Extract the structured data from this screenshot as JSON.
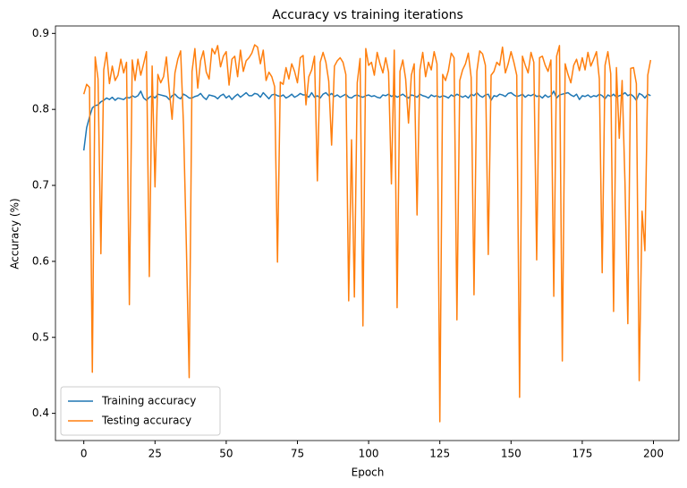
{
  "chart_data": {
    "type": "line",
    "title": "Accuracy vs training iterations",
    "x_label": "Epoch",
    "y_label": "Accuracy (%)",
    "x": [
      0,
      1,
      2,
      3,
      4,
      5,
      6,
      7,
      8,
      9,
      10,
      11,
      12,
      13,
      14,
      15,
      16,
      17,
      18,
      19,
      20,
      21,
      22,
      23,
      24,
      25,
      26,
      27,
      28,
      29,
      30,
      31,
      32,
      33,
      34,
      35,
      36,
      37,
      38,
      39,
      40,
      41,
      42,
      43,
      44,
      45,
      46,
      47,
      48,
      49,
      50,
      51,
      52,
      53,
      54,
      55,
      56,
      57,
      58,
      59,
      60,
      61,
      62,
      63,
      64,
      65,
      66,
      67,
      68,
      69,
      70,
      71,
      72,
      73,
      74,
      75,
      76,
      77,
      78,
      79,
      80,
      81,
      82,
      83,
      84,
      85,
      86,
      87,
      88,
      89,
      90,
      91,
      92,
      93,
      94,
      95,
      96,
      97,
      98,
      99,
      100,
      101,
      102,
      103,
      104,
      105,
      106,
      107,
      108,
      109,
      110,
      111,
      112,
      113,
      114,
      115,
      116,
      117,
      118,
      119,
      120,
      121,
      122,
      123,
      124,
      125,
      126,
      127,
      128,
      129,
      130,
      131,
      132,
      133,
      134,
      135,
      136,
      137,
      138,
      139,
      140,
      141,
      142,
      143,
      144,
      145,
      146,
      147,
      148,
      149,
      150,
      151,
      152,
      153,
      154,
      155,
      156,
      157,
      158,
      159,
      160,
      161,
      162,
      163,
      164,
      165,
      166,
      167,
      168,
      169,
      170,
      171,
      172,
      173,
      174,
      175,
      176,
      177,
      178,
      179,
      180,
      181,
      182,
      183,
      184,
      185,
      186,
      187,
      188,
      189,
      190,
      191,
      192,
      193,
      194,
      195,
      196,
      197,
      198,
      199
    ],
    "series": [
      {
        "name": "Training accuracy",
        "color": "#1f77b4",
        "values": [
          0.746,
          0.776,
          0.79,
          0.802,
          0.805,
          0.806,
          0.81,
          0.812,
          0.815,
          0.813,
          0.816,
          0.812,
          0.815,
          0.814,
          0.813,
          0.816,
          0.815,
          0.818,
          0.816,
          0.818,
          0.824,
          0.815,
          0.812,
          0.816,
          0.818,
          0.815,
          0.82,
          0.819,
          0.818,
          0.817,
          0.813,
          0.818,
          0.82,
          0.816,
          0.814,
          0.82,
          0.818,
          0.815,
          0.815,
          0.817,
          0.818,
          0.821,
          0.816,
          0.813,
          0.819,
          0.818,
          0.817,
          0.814,
          0.818,
          0.82,
          0.815,
          0.818,
          0.813,
          0.817,
          0.82,
          0.816,
          0.819,
          0.822,
          0.818,
          0.818,
          0.821,
          0.82,
          0.816,
          0.822,
          0.818,
          0.814,
          0.819,
          0.82,
          0.818,
          0.817,
          0.819,
          0.815,
          0.817,
          0.82,
          0.816,
          0.818,
          0.821,
          0.819,
          0.819,
          0.816,
          0.822,
          0.816,
          0.818,
          0.815,
          0.82,
          0.822,
          0.818,
          0.821,
          0.817,
          0.819,
          0.816,
          0.818,
          0.82,
          0.816,
          0.815,
          0.818,
          0.819,
          0.817,
          0.816,
          0.818,
          0.819,
          0.817,
          0.818,
          0.816,
          0.815,
          0.819,
          0.818,
          0.82,
          0.817,
          0.819,
          0.816,
          0.818,
          0.82,
          0.817,
          0.815,
          0.819,
          0.818,
          0.816,
          0.82,
          0.818,
          0.817,
          0.815,
          0.819,
          0.817,
          0.818,
          0.816,
          0.818,
          0.817,
          0.815,
          0.819,
          0.817,
          0.82,
          0.818,
          0.816,
          0.818,
          0.815,
          0.82,
          0.818,
          0.822,
          0.818,
          0.816,
          0.819,
          0.82,
          0.812,
          0.818,
          0.817,
          0.82,
          0.819,
          0.817,
          0.821,
          0.822,
          0.819,
          0.817,
          0.818,
          0.82,
          0.816,
          0.819,
          0.818,
          0.82,
          0.817,
          0.818,
          0.815,
          0.819,
          0.816,
          0.818,
          0.824,
          0.815,
          0.819,
          0.82,
          0.821,
          0.822,
          0.819,
          0.817,
          0.82,
          0.813,
          0.818,
          0.817,
          0.819,
          0.816,
          0.818,
          0.817,
          0.82,
          0.818,
          0.814,
          0.819,
          0.817,
          0.82,
          0.816,
          0.818,
          0.819,
          0.822,
          0.818,
          0.82,
          0.817,
          0.812,
          0.821,
          0.819,
          0.815,
          0.82,
          0.818
        ]
      },
      {
        "name": "Testing accuracy",
        "color": "#ff7f0e",
        "values": [
          0.82,
          0.833,
          0.829,
          0.454,
          0.869,
          0.84,
          0.61,
          0.852,
          0.875,
          0.834,
          0.857,
          0.838,
          0.845,
          0.866,
          0.848,
          0.862,
          0.543,
          0.865,
          0.838,
          0.866,
          0.845,
          0.86,
          0.876,
          0.58,
          0.857,
          0.698,
          0.846,
          0.835,
          0.843,
          0.869,
          0.825,
          0.787,
          0.848,
          0.866,
          0.877,
          0.779,
          0.622,
          0.447,
          0.85,
          0.88,
          0.828,
          0.864,
          0.877,
          0.849,
          0.84,
          0.88,
          0.873,
          0.884,
          0.856,
          0.87,
          0.876,
          0.832,
          0.866,
          0.87,
          0.843,
          0.878,
          0.85,
          0.864,
          0.868,
          0.874,
          0.885,
          0.882,
          0.86,
          0.878,
          0.838,
          0.849,
          0.843,
          0.83,
          0.599,
          0.836,
          0.833,
          0.855,
          0.84,
          0.86,
          0.85,
          0.835,
          0.868,
          0.871,
          0.806,
          0.843,
          0.852,
          0.87,
          0.706,
          0.862,
          0.875,
          0.862,
          0.837,
          0.753,
          0.857,
          0.864,
          0.868,
          0.862,
          0.846,
          0.548,
          0.76,
          0.553,
          0.835,
          0.867,
          0.515,
          0.88,
          0.858,
          0.862,
          0.845,
          0.875,
          0.86,
          0.848,
          0.868,
          0.849,
          0.702,
          0.878,
          0.539,
          0.85,
          0.865,
          0.84,
          0.782,
          0.845,
          0.86,
          0.661,
          0.852,
          0.875,
          0.843,
          0.862,
          0.852,
          0.876,
          0.86,
          0.389,
          0.846,
          0.838,
          0.851,
          0.874,
          0.868,
          0.523,
          0.838,
          0.852,
          0.86,
          0.874,
          0.842,
          0.556,
          0.85,
          0.877,
          0.873,
          0.858,
          0.609,
          0.845,
          0.85,
          0.862,
          0.858,
          0.882,
          0.848,
          0.86,
          0.876,
          0.862,
          0.845,
          0.421,
          0.87,
          0.858,
          0.848,
          0.875,
          0.862,
          0.602,
          0.868,
          0.87,
          0.858,
          0.85,
          0.865,
          0.554,
          0.87,
          0.884,
          0.469,
          0.86,
          0.846,
          0.835,
          0.858,
          0.866,
          0.851,
          0.868,
          0.852,
          0.875,
          0.857,
          0.866,
          0.876,
          0.84,
          0.585,
          0.858,
          0.876,
          0.847,
          0.534,
          0.855,
          0.762,
          0.838,
          0.704,
          0.518,
          0.854,
          0.855,
          0.834,
          0.443,
          0.666,
          0.614,
          0.845,
          0.865
        ]
      }
    ],
    "xlim": [
      -9.95,
      208.95
    ],
    "ylim": [
      0.3642,
      0.9098
    ],
    "xticks": [
      0,
      25,
      50,
      75,
      100,
      125,
      150,
      175,
      200
    ],
    "yticks": [
      0.4,
      0.5,
      0.6,
      0.7,
      0.8,
      0.9
    ],
    "legend": "lower left",
    "grid": false
  }
}
